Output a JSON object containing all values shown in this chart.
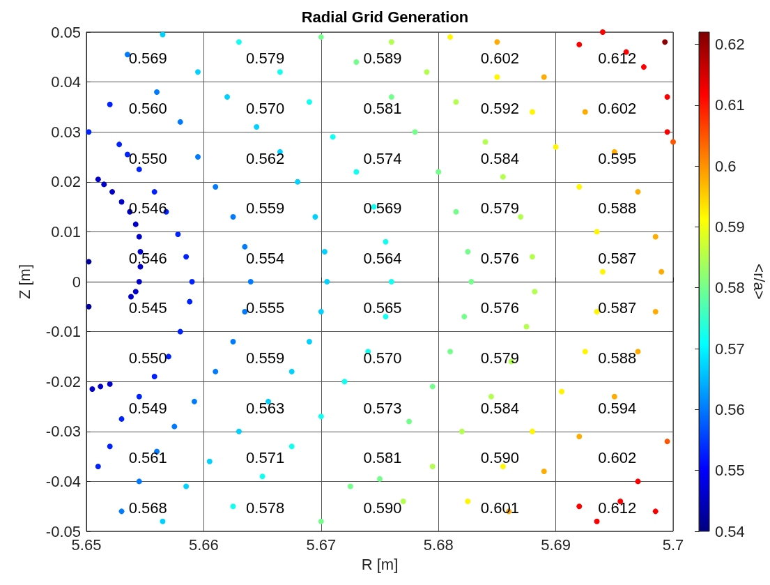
{
  "chart_data": {
    "type": "scatter",
    "title": "Radial Grid Generation",
    "xlabel": "R [m]",
    "ylabel": "Z [m]",
    "clabel": "<r/a>",
    "xlim": [
      5.65,
      5.7
    ],
    "xticks": [
      5.65,
      5.66,
      5.67,
      5.68,
      5.69,
      5.7
    ],
    "ylim": [
      -0.05,
      0.05
    ],
    "yticks": [
      -0.05,
      -0.04,
      -0.03,
      -0.02,
      -0.01,
      0,
      0.01,
      0.02,
      0.03,
      0.04,
      0.05
    ],
    "clim": [
      0.54,
      0.622
    ],
    "cticks": [
      0.54,
      0.55,
      0.56,
      0.57,
      0.58,
      0.59,
      0.6,
      0.61,
      0.62
    ],
    "grid": true,
    "marker": "circle",
    "series": [
      {
        "x": [
          5.651,
          5.6515,
          5.6522,
          5.653,
          5.6537,
          5.6542,
          5.6545,
          5.6546,
          5.6546,
          5.6545,
          5.6542,
          5.6538,
          5.6505,
          5.6512,
          5.652
        ],
        "values": [
          0.0205,
          0.0195,
          0.018,
          0.016,
          0.014,
          0.0115,
          0.009,
          0.006,
          0.003,
          0,
          -0.002,
          -0.003,
          -0.0215,
          -0.021,
          -0.0205
        ],
        "cvalues": [
          0.546,
          0.546,
          0.546,
          0.546,
          0.546,
          0.546,
          0.546,
          0.546,
          0.546,
          0.546,
          0.546,
          0.546,
          0.546,
          0.546,
          0.546
        ]
      },
      {
        "x": [
          5.6502,
          5.6502
        ],
        "values": [
          0.004,
          -0.005
        ],
        "cvalues": [
          0.542,
          0.542
        ]
      },
      {
        "x": [
          5.6502,
          5.652,
          5.6528,
          5.6535,
          5.6545,
          5.6558,
          5.6568,
          5.6578,
          5.6585,
          5.659,
          5.6588,
          5.658,
          5.657,
          5.6558,
          5.6545,
          5.653,
          5.652,
          5.651
        ],
        "values": [
          0.03,
          0.0355,
          0.0275,
          0.0255,
          0.0225,
          0.018,
          0.014,
          0.0095,
          0.005,
          0,
          -0.004,
          -0.01,
          -0.015,
          -0.019,
          -0.023,
          -0.0275,
          -0.033,
          -0.037
        ],
        "cvalues": [
          0.553,
          0.553,
          0.553,
          0.553,
          0.553,
          0.553,
          0.553,
          0.553,
          0.553,
          0.553,
          0.553,
          0.553,
          0.553,
          0.553,
          0.553,
          0.553,
          0.553,
          0.553
        ]
      },
      {
        "x": [
          5.6535,
          5.656,
          5.658,
          5.6595,
          5.661,
          5.6625,
          5.6635,
          5.664,
          5.6635,
          5.6625,
          5.661,
          5.6592,
          5.6575,
          5.656,
          5.6545,
          5.653
        ],
        "values": [
          0.0455,
          0.038,
          0.032,
          0.025,
          0.019,
          0.013,
          0.007,
          0,
          -0.006,
          -0.012,
          -0.018,
          -0.024,
          -0.029,
          -0.034,
          -0.04,
          -0.046
        ],
        "cvalues": [
          0.56,
          0.56,
          0.56,
          0.56,
          0.56,
          0.56,
          0.56,
          0.56,
          0.56,
          0.56,
          0.56,
          0.56,
          0.56,
          0.56,
          0.56,
          0.56
        ]
      },
      {
        "x": [
          5.6565,
          5.6595,
          5.662,
          5.6645,
          5.6665,
          5.668,
          5.6695,
          5.6703,
          5.6705,
          5.67,
          5.669,
          5.6675,
          5.6655,
          5.663,
          5.6605,
          5.6585,
          5.6565
        ],
        "values": [
          0.0495,
          0.042,
          0.037,
          0.031,
          0.026,
          0.02,
          0.013,
          0.006,
          0,
          -0.006,
          -0.012,
          -0.018,
          -0.024,
          -0.03,
          -0.036,
          -0.041,
          -0.048
        ],
        "cvalues": [
          0.567,
          0.567,
          0.567,
          0.567,
          0.567,
          0.567,
          0.567,
          0.567,
          0.567,
          0.567,
          0.567,
          0.567,
          0.567,
          0.567,
          0.567,
          0.567,
          0.567
        ]
      },
      {
        "x": [
          5.663,
          5.6665,
          5.669,
          5.671,
          5.673,
          5.6745,
          5.6755,
          5.676,
          5.6755,
          5.674,
          5.672,
          5.67,
          5.6675,
          5.665,
          5.6625
        ],
        "values": [
          0.048,
          0.042,
          0.036,
          0.029,
          0.022,
          0.015,
          0.008,
          0,
          -0.007,
          -0.014,
          -0.02,
          -0.027,
          -0.033,
          -0.039,
          -0.045
        ],
        "cvalues": [
          0.572,
          0.572,
          0.572,
          0.572,
          0.572,
          0.572,
          0.572,
          0.572,
          0.572,
          0.572,
          0.572,
          0.572,
          0.572,
          0.572,
          0.572
        ]
      },
      {
        "x": [
          5.67,
          5.673,
          5.676,
          5.678,
          5.68,
          5.6815,
          5.6825,
          5.6828,
          5.6822,
          5.681,
          5.6795,
          5.6775,
          5.675,
          5.6725,
          5.67
        ],
        "values": [
          0.049,
          0.044,
          0.037,
          0.03,
          0.022,
          0.014,
          0.006,
          0,
          -0.007,
          -0.014,
          -0.021,
          -0.028,
          -0.0395,
          -0.041,
          -0.048
        ],
        "cvalues": [
          0.58,
          0.58,
          0.58,
          0.58,
          0.58,
          0.58,
          0.58,
          0.58,
          0.58,
          0.58,
          0.58,
          0.58,
          0.58,
          0.58,
          0.58
        ]
      },
      {
        "x": [
          5.676,
          5.679,
          5.6815,
          5.684,
          5.6855,
          5.687,
          5.688,
          5.6882,
          5.6875,
          5.6862,
          5.6845,
          5.682,
          5.6795,
          5.677
        ],
        "values": [
          0.048,
          0.042,
          0.036,
          0.028,
          0.021,
          0.013,
          0.005,
          -0.002,
          -0.009,
          -0.016,
          -0.023,
          -0.03,
          -0.037,
          -0.044
        ],
        "cvalues": [
          0.585,
          0.585,
          0.585,
          0.585,
          0.585,
          0.585,
          0.585,
          0.585,
          0.585,
          0.585,
          0.585,
          0.585,
          0.585,
          0.585
        ]
      },
      {
        "x": [
          5.681,
          5.685,
          5.688,
          5.69,
          5.692,
          5.6935,
          5.694,
          5.6935,
          5.6925,
          5.6905,
          5.688,
          5.6855,
          5.6825
        ],
        "values": [
          0.049,
          0.041,
          0.034,
          0.027,
          0.019,
          0.01,
          0.002,
          -0.006,
          -0.014,
          -0.022,
          -0.03,
          -0.037,
          -0.044
        ],
        "cvalues": [
          0.592,
          0.592,
          0.592,
          0.592,
          0.592,
          0.592,
          0.592,
          0.592,
          0.592,
          0.592,
          0.592,
          0.592,
          0.592
        ]
      },
      {
        "x": [
          5.685,
          5.689,
          5.6925,
          5.695,
          5.697,
          5.6985,
          5.699,
          5.6985,
          5.697,
          5.695,
          5.692,
          5.689,
          5.686
        ],
        "values": [
          0.048,
          0.041,
          0.034,
          0.026,
          0.018,
          0.009,
          0.002,
          -0.006,
          -0.014,
          -0.023,
          -0.031,
          -0.038,
          -0.046
        ],
        "cvalues": [
          0.598,
          0.598,
          0.598,
          0.598,
          0.598,
          0.598,
          0.598,
          0.598,
          0.598,
          0.598,
          0.598,
          0.598,
          0.598
        ]
      },
      {
        "x": [
          5.692,
          5.694,
          5.696,
          5.6975,
          5.6995,
          5.6995,
          5.692,
          5.6935,
          5.6955,
          5.697,
          5.6985
        ],
        "values": [
          0.0475,
          0.05,
          0.046,
          0.043,
          0.037,
          0.03,
          -0.045,
          -0.048,
          -0.044,
          -0.04,
          -0.046
        ],
        "cvalues": [
          0.612,
          0.612,
          0.612,
          0.612,
          0.612,
          0.612,
          0.612,
          0.612,
          0.612,
          0.612,
          0.612
        ]
      },
      {
        "x": [
          5.7,
          5.6995
        ],
        "values": [
          0.028,
          -0.032
        ],
        "cvalues": [
          0.605,
          0.605
        ]
      },
      {
        "x": [
          5.6993
        ],
        "values": [
          0.048
        ],
        "cvalues": [
          0.621
        ]
      }
    ],
    "annotations": [
      "0.569",
      "0.579",
      "0.589",
      "0.602",
      "0.612",
      "0.560",
      "0.570",
      "0.581",
      "0.592",
      "0.602",
      "0.550",
      "0.562",
      "0.574",
      "0.584",
      "0.595",
      "0.546",
      "0.559",
      "0.569",
      "0.579",
      "0.588",
      "0.546",
      "0.554",
      "0.564",
      "0.576",
      "0.587",
      "0.545",
      "0.555",
      "0.565",
      "0.576",
      "0.587",
      "0.550",
      "0.559",
      "0.570",
      "0.579",
      "0.588",
      "0.549",
      "0.563",
      "0.573",
      "0.584",
      "0.594",
      "0.561",
      "0.571",
      "0.581",
      "0.590",
      "0.602",
      "0.568",
      "0.578",
      "0.590",
      "0.601",
      "0.612"
    ]
  }
}
